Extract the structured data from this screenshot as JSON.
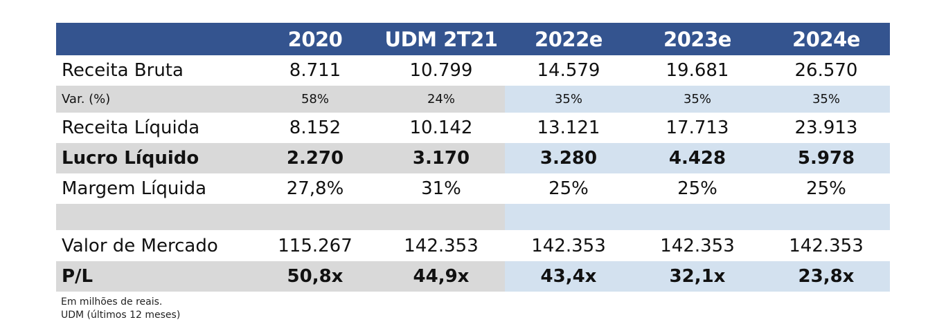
{
  "columns": [
    "",
    "2020",
    "UDM 2T21",
    "2022e",
    "2023e",
    "2024e"
  ],
  "rows": [
    {
      "label": "Receita Bruta",
      "values": [
        "8.711",
        "10.799",
        "14.579",
        "19.681",
        "26.570"
      ]
    },
    {
      "label": "Var. (%)",
      "values": [
        "58%",
        "24%",
        "35%",
        "35%",
        "35%"
      ]
    },
    {
      "label": "Receita Líquida",
      "values": [
        "8.152",
        "10.142",
        "13.121",
        "17.713",
        "23.913"
      ]
    },
    {
      "label": "Lucro Líquido",
      "values": [
        "2.270",
        "3.170",
        "3.280",
        "4.428",
        "5.978"
      ]
    },
    {
      "label": "Margem Líquida",
      "values": [
        "27,8%",
        "31%",
        "25%",
        "25%",
        "25%"
      ]
    },
    {
      "label": "",
      "values": [
        "",
        "",
        "",
        "",
        ""
      ]
    },
    {
      "label": "Valor de Mercado",
      "values": [
        "115.267",
        "142.353",
        "142.353",
        "142.353",
        "142.353"
      ]
    },
    {
      "label": "P/L",
      "values": [
        "50,8x",
        "44,9x",
        "43,4x",
        "32,1x",
        "23,8x"
      ]
    }
  ],
  "notes": [
    "Em milhões de reais.",
    "UDM (últimos 12 meses)"
  ],
  "colors": {
    "header_bg": "#34548f",
    "header_text": "#ffffff",
    "historical_shade": "#d9d9d9",
    "projection_shade": "#d3e1ef"
  }
}
